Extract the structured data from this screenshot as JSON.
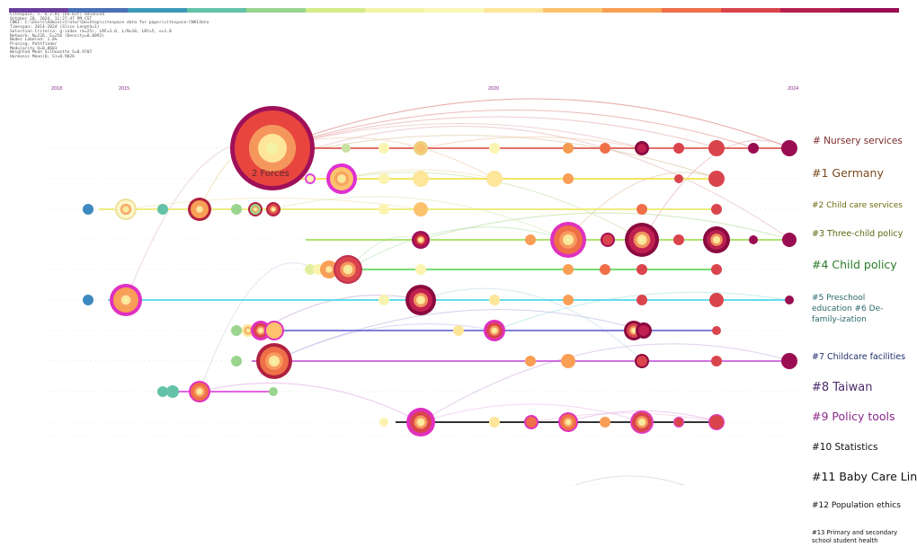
{
  "colorbar": {
    "colors": [
      "#6b3f9c",
      "#4a70b5",
      "#3d9ab8",
      "#63c2a8",
      "#9bd48f",
      "#d4eb8a",
      "#f2f3a5",
      "#fbf7b8",
      "#fde59a",
      "#fdc26d",
      "#f99e55",
      "#ef6f48",
      "#d9444d",
      "#b7204f",
      "#9a0d52"
    ]
  },
  "meta": {
    "lines": [
      "CiteSpace, v. 6.2.R1 (64-bit) Advanced",
      "October 28, 2024, 11:27:47 PM CST",
      "CNKI: C:\\Users\\Administrator\\Desktop\\citespace data for paper\\citespace-CNKIdata",
      "Timespan: 2014-2024 (Slice Length=1)",
      "Selection Criteria: g-index (k=25), LRF=3.0, L/N=10, LBY=5, e=1.0",
      "Network: N=226, E=256 (Density=0.0092)",
      "Nodes Labeled: 1.0%",
      "Pruning: Pathfinder",
      "Modularity Q=0.8601",
      "Weighted Mean Silhouette S=0.9707",
      "Harmonic Mean(Q, S)=0.9026"
    ]
  },
  "axis": {
    "years": [
      {
        "label": "2018"
      },
      {
        "label": "2015"
      },
      {
        "label": "2020"
      },
      {
        "label": "2024"
      }
    ]
  },
  "annotation": "2 Forces",
  "clusters": [
    {
      "label": "# Nursery services",
      "color": "#e0564e"
    },
    {
      "label": "#1 Germany",
      "color": "#f2e24a"
    },
    {
      "label": "#2 Child care services",
      "color": "#ecec6a"
    },
    {
      "label": "#3 Three-child policy",
      "color": "#9fe05a"
    },
    {
      "label": "#4 Child policy",
      "color": "#5ed85a"
    },
    {
      "label": "#5 Preschool education #6 De-family-ization",
      "color": "#4ad8e8"
    },
    {
      "label": "#7 Childcare facilities",
      "color": "#6a6ad8"
    },
    {
      "label": "#8 Taiwan",
      "color": "#c85ad8"
    },
    {
      "label": "#9 Policy tools",
      "color": "#e04ae0"
    },
    {
      "label": "#10 Statistics",
      "color": "#111111"
    },
    {
      "label": "#11 Baby Care Lin",
      "color": "#111111"
    },
    {
      "label": "#12 Population ethics",
      "color": "#111111"
    },
    {
      "label": "#13 Primary and secondary school student health",
      "color": "#111111"
    }
  ]
}
